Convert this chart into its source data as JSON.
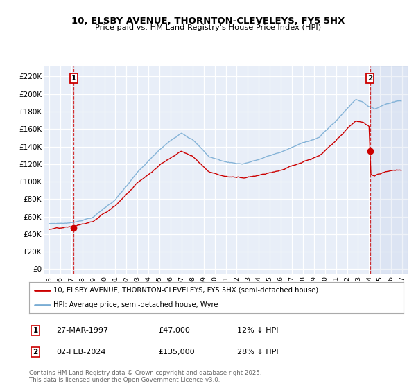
{
  "title": "10, ELSBY AVENUE, THORNTON-CLEVELEYS, FY5 5HX",
  "subtitle": "Price paid vs. HM Land Registry's House Price Index (HPI)",
  "ylabel_vals": [
    0,
    20000,
    40000,
    60000,
    80000,
    100000,
    120000,
    140000,
    160000,
    180000,
    200000,
    220000
  ],
  "ylabel_texts": [
    "£0",
    "£20K",
    "£40K",
    "£60K",
    "£80K",
    "£100K",
    "£120K",
    "£140K",
    "£160K",
    "£180K",
    "£200K",
    "£220K"
  ],
  "xlim": [
    1994.5,
    2027.5
  ],
  "ylim": [
    -5000,
    232000
  ],
  "background_color": "#e8eef8",
  "red_color": "#cc0000",
  "blue_color": "#7aadd4",
  "transaction1_x": 1997.23,
  "transaction1_y": 47000,
  "transaction2_x": 2024.09,
  "transaction2_y": 135000,
  "legend_red_label": "10, ELSBY AVENUE, THORNTON-CLEVELEYS, FY5 5HX (semi-detached house)",
  "legend_blue_label": "HPI: Average price, semi-detached house, Wyre",
  "footer_text": "Contains HM Land Registry data © Crown copyright and database right 2025.\nThis data is licensed under the Open Government Licence v3.0.",
  "table1_date": "27-MAR-1997",
  "table1_price": "£47,000",
  "table1_hpi": "12% ↓ HPI",
  "table2_date": "02-FEB-2024",
  "table2_price": "£135,000",
  "table2_hpi": "28% ↓ HPI"
}
